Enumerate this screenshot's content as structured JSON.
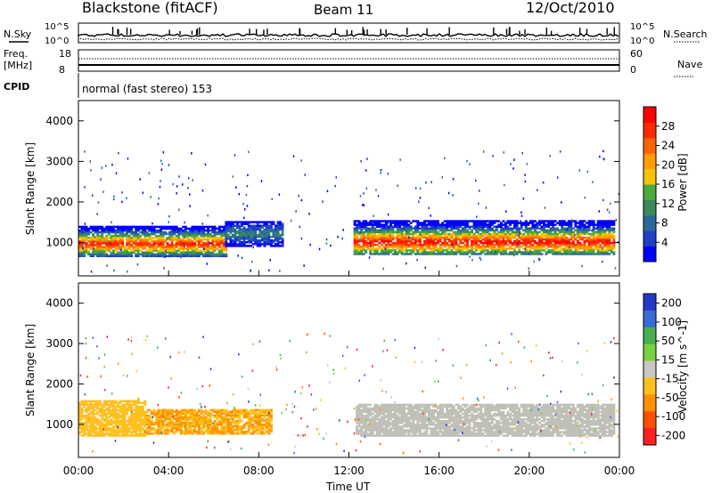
{
  "header": {
    "station": "Blackstone (fitACF)",
    "beam": "Beam 11",
    "date": "12/Oct/2010"
  },
  "status_panels": {
    "nsky_label": "N.Sky",
    "nsearch_label": "N.Search",
    "freq_label_1": "Freq.",
    "freq_label_2": "[MHz]",
    "nave_label": "Nave",
    "cpid_label": "CPID",
    "cpid_text": "normal (fast stereo) 153",
    "noise_ticks_left": [
      "10^5",
      "10^0"
    ],
    "noise_ticks_right": [
      "10^5",
      "10^0"
    ],
    "freq_ticks": [
      "18",
      "8"
    ],
    "nave_ticks": [
      "60",
      "0"
    ]
  },
  "x_axis": {
    "label": "Time UT",
    "ticks": [
      "00:00",
      "04:00",
      "08:00",
      "12:00",
      "16:00",
      "20:00",
      "00:00"
    ],
    "range_hours": [
      0,
      24
    ]
  },
  "colors": {
    "power": [
      "#0000ff",
      "#1e3fc8",
      "#2a6a9a",
      "#3b8a5a",
      "#4aaa3a",
      "#f4c400",
      "#ff9c00",
      "#ff6400",
      "#ff2a00",
      "#ff0000"
    ],
    "velocity": [
      "#2438c8",
      "#3a6ad8",
      "#48b050",
      "#7ad040",
      "#c8c8c0",
      "#ffc020",
      "#ff9000",
      "#ff5000",
      "#ff2020"
    ],
    "ground_scatter": "#c0c0b8"
  },
  "chart_data": [
    {
      "type": "heatmap",
      "title": "",
      "xlabel": "Time UT",
      "ylabel": "Slant Range [km]",
      "x_range": [
        0,
        24
      ],
      "ylim": [
        180,
        4500
      ],
      "y_ticks": [
        "1000",
        "2000",
        "3000",
        "4000"
      ],
      "colorbar": {
        "label": "Power [dB]",
        "ticks": [
          "4",
          "8",
          "12",
          "16",
          "20",
          "24",
          "28"
        ],
        "range": [
          0,
          30
        ]
      },
      "echo_regions": [
        {
          "start_h": 0.0,
          "end_h": 6.5,
          "range_km": [
            650,
            1400
          ],
          "peak_km": 950,
          "peak_db": 27
        },
        {
          "start_h": 6.5,
          "end_h": 9.0,
          "range_km": [
            900,
            1500
          ],
          "peak_km": 1200,
          "peak_db": 10
        },
        {
          "start_h": 12.2,
          "end_h": 23.8,
          "range_km": [
            700,
            1550
          ],
          "peak_km": 1000,
          "peak_db": 28
        }
      ]
    },
    {
      "type": "heatmap",
      "title": "",
      "xlabel": "Time UT",
      "ylabel": "Slant Range [km]",
      "x_range": [
        0,
        24
      ],
      "ylim": [
        180,
        4500
      ],
      "y_ticks": [
        "1000",
        "2000",
        "3000",
        "4000"
      ],
      "colorbar": {
        "label": "Velocity [m s^-1]",
        "ticks": [
          "200",
          "100",
          "50",
          "15",
          "-15",
          "-50",
          "-100",
          "-200"
        ],
        "range": [
          -250,
          250
        ]
      },
      "echo_regions": [
        {
          "start_h": 0.0,
          "end_h": 3.0,
          "range_km": [
            700,
            1600
          ],
          "velocity": -60
        },
        {
          "start_h": 3.0,
          "end_h": 8.5,
          "range_km": [
            750,
            1350
          ],
          "velocity": -80
        },
        {
          "start_h": 12.3,
          "end_h": 23.8,
          "range_km": [
            700,
            1500
          ],
          "velocity": 0
        }
      ]
    }
  ]
}
